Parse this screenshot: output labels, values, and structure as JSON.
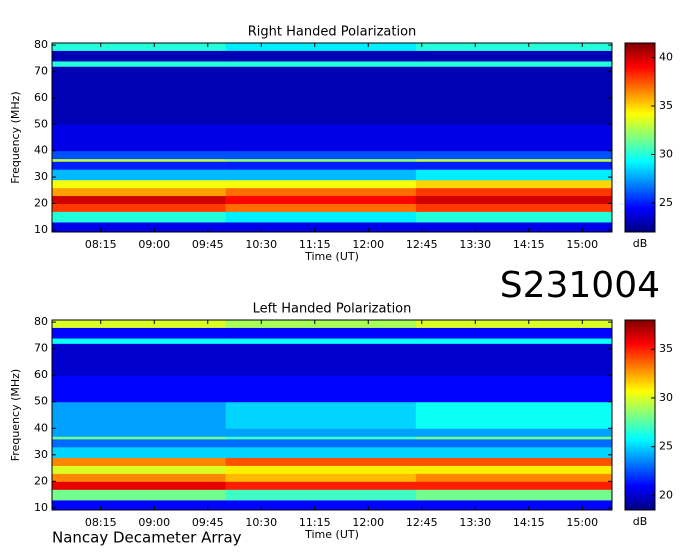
{
  "chart_data": [
    {
      "type": "heatmap",
      "title": "Right Handed Polarization",
      "xlabel": "Time (UT)",
      "ylabel": "Frequency (MHz)",
      "xlim": [
        454,
        925
      ],
      "ylim": [
        9.2,
        80.8
      ],
      "xticks": [
        {
          "value": 495,
          "label": "08:15"
        },
        {
          "value": 540,
          "label": "09:00"
        },
        {
          "value": 585,
          "label": "09:45"
        },
        {
          "value": 630,
          "label": "10:30"
        },
        {
          "value": 675,
          "label": "11:15"
        },
        {
          "value": 720,
          "label": "12:00"
        },
        {
          "value": 765,
          "label": "12:45"
        },
        {
          "value": 810,
          "label": "13:30"
        },
        {
          "value": 855,
          "label": "14:15"
        },
        {
          "value": 900,
          "label": "15:00"
        }
      ],
      "yticks": [
        10,
        20,
        30,
        40,
        50,
        60,
        70,
        80
      ],
      "x_bins": [
        454,
        600,
        760,
        925
      ],
      "y_bins": [
        9.2,
        13,
        17,
        20,
        23,
        26,
        29,
        33,
        36,
        37,
        40,
        50,
        60,
        72,
        74,
        78,
        80.8
      ],
      "values": [
        [
          24,
          24,
          24
        ],
        [
          30,
          29,
          30
        ],
        [
          38,
          37,
          38
        ],
        [
          40,
          39,
          40
        ],
        [
          36,
          37,
          38
        ],
        [
          34,
          34,
          35
        ],
        [
          28,
          28,
          29
        ],
        [
          25,
          25,
          25
        ],
        [
          33,
          32,
          33
        ],
        [
          26,
          26,
          26
        ],
        [
          24,
          24,
          24
        ],
        [
          23,
          23,
          23
        ],
        [
          23,
          23,
          23
        ],
        [
          30,
          30,
          30
        ],
        [
          23,
          23,
          23
        ],
        [
          30,
          29,
          30
        ]
      ],
      "clim": [
        22,
        41.5
      ],
      "cticks": [
        25,
        30,
        35,
        40
      ],
      "clabel": "dB"
    },
    {
      "type": "heatmap",
      "title": "Left Handed Polarization",
      "xlabel": "Time (UT)",
      "ylabel": "Frequency (MHz)",
      "xlim": [
        454,
        925
      ],
      "ylim": [
        9.2,
        80.8
      ],
      "xticks": [
        {
          "value": 495,
          "label": "08:15"
        },
        {
          "value": 540,
          "label": "09:00"
        },
        {
          "value": 585,
          "label": "09:45"
        },
        {
          "value": 630,
          "label": "10:30"
        },
        {
          "value": 675,
          "label": "11:15"
        },
        {
          "value": 720,
          "label": "12:00"
        },
        {
          "value": 765,
          "label": "12:45"
        },
        {
          "value": 810,
          "label": "13:30"
        },
        {
          "value": 855,
          "label": "14:15"
        },
        {
          "value": 900,
          "label": "15:00"
        }
      ],
      "yticks": [
        10,
        20,
        30,
        40,
        50,
        60,
        70,
        80
      ],
      "x_bins": [
        454,
        600,
        760,
        925
      ],
      "y_bins": [
        9.2,
        13,
        17,
        20,
        23,
        26,
        29,
        33,
        36,
        37,
        40,
        50,
        60,
        72,
        74,
        78,
        80.8
      ],
      "values": [
        [
          21,
          21,
          21
        ],
        [
          28,
          27,
          28
        ],
        [
          36,
          35,
          35
        ],
        [
          33,
          32,
          33
        ],
        [
          30,
          31,
          31
        ],
        [
          33,
          34,
          34
        ],
        [
          25,
          25,
          25
        ],
        [
          23,
          23,
          23
        ],
        [
          28,
          27,
          28
        ],
        [
          24,
          24,
          24
        ],
        [
          24,
          25,
          26
        ],
        [
          21,
          21,
          21
        ],
        [
          20,
          20,
          20
        ],
        [
          26,
          26,
          26
        ],
        [
          21,
          21,
          21
        ],
        [
          30,
          29,
          30
        ]
      ],
      "clim": [
        18.5,
        38
      ],
      "cticks": [
        20,
        25,
        30,
        35
      ],
      "clabel": "dB"
    }
  ],
  "observation_id": "S231004",
  "instrument": "Nancay Decameter Array"
}
